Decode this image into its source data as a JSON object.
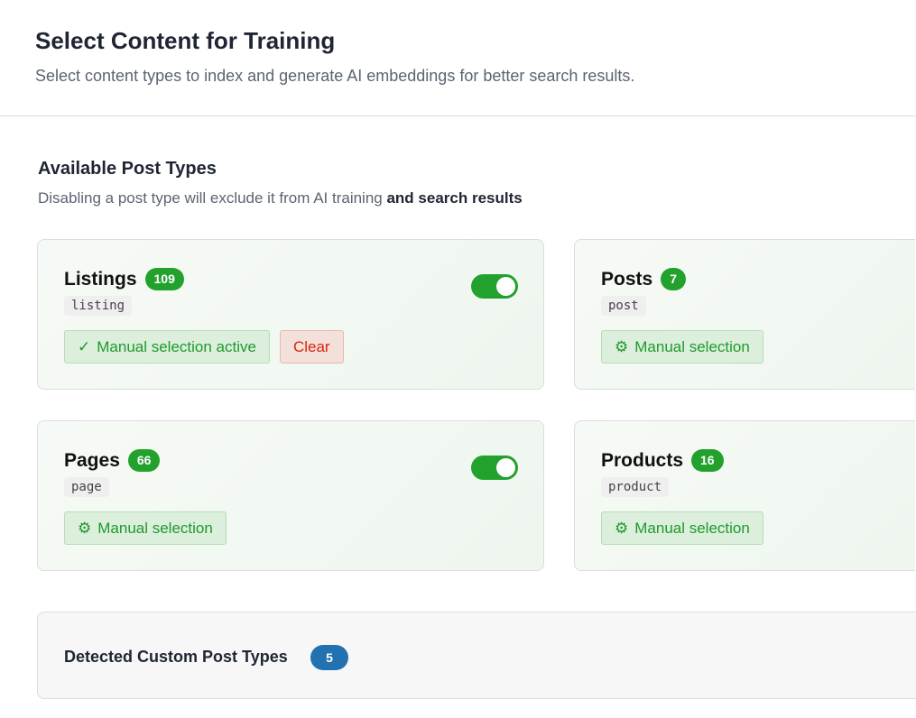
{
  "header": {
    "title": "Select Content for Training",
    "subtitle": "Select content types to index and generate AI embeddings for better search results."
  },
  "section": {
    "title": "Available Post Types",
    "desc_plain": "Disabling a post type will exclude it from AI training ",
    "desc_bold": "and search results"
  },
  "cards": [
    {
      "name": "Listings",
      "count": "109",
      "slug": "listing",
      "enabled": true,
      "manual_label": "Manual selection active",
      "manual_icon": "check-icon",
      "clear_label": "Clear"
    },
    {
      "name": "Posts",
      "count": "7",
      "slug": "post",
      "manual_label": "Manual selection",
      "manual_icon": "gear-icon"
    },
    {
      "name": "Pages",
      "count": "66",
      "slug": "page",
      "enabled": true,
      "manual_label": "Manual selection",
      "manual_icon": "gear-icon"
    },
    {
      "name": "Products",
      "count": "16",
      "slug": "product",
      "manual_label": "Manual selection",
      "manual_icon": "gear-icon"
    }
  ],
  "detected": {
    "title": "Detected Custom Post Types",
    "count": "5"
  },
  "colors": {
    "accent_green": "#23a12d",
    "blue": "#2271b1",
    "clear_red": "#d6260f"
  }
}
